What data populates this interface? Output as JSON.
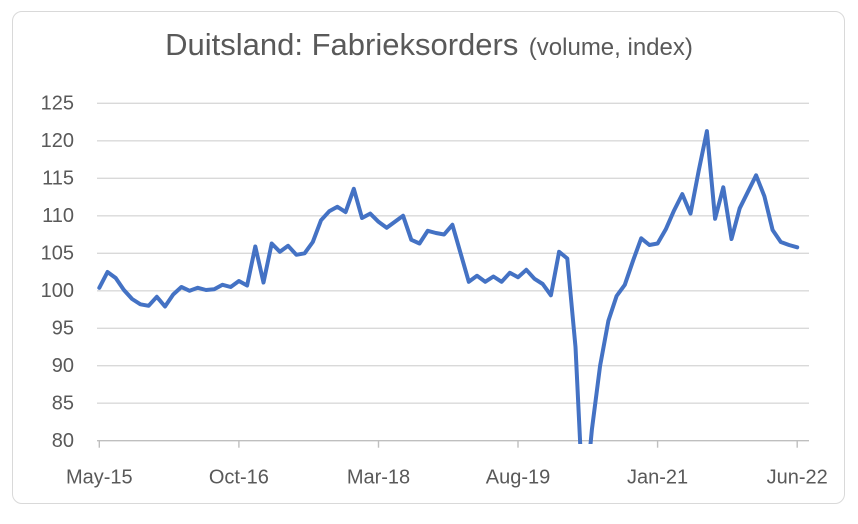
{
  "chart_data": {
    "type": "line",
    "title": "Duitsland: Fabrieksorders",
    "title_suffix": "(volume, index)",
    "series_name": "Fabrieksorders volume index",
    "legend": "none",
    "grid": "horizontal",
    "ylim": [
      80,
      125
    ],
    "y_step": 5,
    "y_tick_labels": [
      "80",
      "85",
      "90",
      "95",
      "100",
      "105",
      "110",
      "115",
      "120",
      "125"
    ],
    "x_tick_labels": [
      "May-15",
      "Oct-16",
      "Mar-18",
      "Aug-19",
      "Jan-21",
      "Jun-22"
    ],
    "x_tick_indices": [
      0,
      17,
      34,
      51,
      68,
      85
    ],
    "x": [
      "May-15",
      "Jun-15",
      "Jul-15",
      "Aug-15",
      "Sep-15",
      "Oct-15",
      "Nov-15",
      "Dec-15",
      "Jan-16",
      "Feb-16",
      "Mar-16",
      "Apr-16",
      "May-16",
      "Jun-16",
      "Jul-16",
      "Aug-16",
      "Sep-16",
      "Oct-16",
      "Nov-16",
      "Dec-16",
      "Jan-17",
      "Feb-17",
      "Mar-17",
      "Apr-17",
      "May-17",
      "Jun-17",
      "Jul-17",
      "Aug-17",
      "Sep-17",
      "Oct-17",
      "Nov-17",
      "Dec-17",
      "Jan-18",
      "Feb-18",
      "Mar-18",
      "Apr-18",
      "May-18",
      "Jun-18",
      "Jul-18",
      "Aug-18",
      "Sep-18",
      "Oct-18",
      "Nov-18",
      "Dec-18",
      "Jan-19",
      "Feb-19",
      "Mar-19",
      "Apr-19",
      "May-19",
      "Jun-19",
      "Jul-19",
      "Aug-19",
      "Sep-19",
      "Oct-19",
      "Nov-19",
      "Dec-19",
      "Jan-20",
      "Feb-20",
      "Mar-20",
      "Apr-20",
      "May-20",
      "Jun-20",
      "Jul-20",
      "Aug-20",
      "Sep-20",
      "Oct-20",
      "Nov-20",
      "Dec-20",
      "Jan-21",
      "Feb-21",
      "Mar-21",
      "Apr-21",
      "May-21",
      "Jun-21",
      "Jul-21",
      "Aug-21",
      "Sep-21",
      "Oct-21",
      "Nov-21",
      "Dec-21",
      "Jan-22",
      "Feb-22",
      "Mar-22",
      "Apr-22",
      "May-22",
      "Jun-22"
    ],
    "values": [
      100.4,
      102.5,
      101.7,
      100.1,
      98.9,
      98.2,
      98.0,
      99.2,
      97.9,
      99.5,
      100.5,
      100.0,
      100.4,
      100.1,
      100.2,
      100.8,
      100.5,
      101.3,
      100.7,
      105.9,
      101.1,
      106.3,
      105.2,
      106.0,
      104.8,
      105.0,
      106.5,
      109.4,
      110.6,
      111.2,
      110.5,
      113.6,
      109.7,
      110.3,
      109.2,
      108.4,
      109.2,
      110.0,
      106.8,
      106.3,
      108.0,
      107.7,
      107.5,
      108.8,
      105.0,
      101.2,
      102.0,
      101.2,
      101.9,
      101.2,
      102.4,
      101.8,
      102.8,
      101.6,
      100.9,
      99.4,
      105.2,
      104.3,
      92.5,
      70.0,
      81.5,
      90.0,
      96.0,
      99.3,
      100.8,
      104.0,
      107.0,
      106.1,
      106.3,
      108.2,
      110.7,
      112.9,
      110.3,
      116.0,
      121.3,
      109.6,
      113.8,
      106.9,
      111.0,
      113.2,
      115.4,
      112.6,
      108.1,
      106.5,
      106.1,
      105.8
    ],
    "clip_note": "values below 80 are clipped at the bottom axis",
    "line_color": "#4472C4",
    "gridline_color": "#D9D9D9",
    "axis_color": "#BFBFBF",
    "label_color": "#595959",
    "frame_border_color": "#D9D9D9",
    "background_color": "#FFFFFF"
  }
}
